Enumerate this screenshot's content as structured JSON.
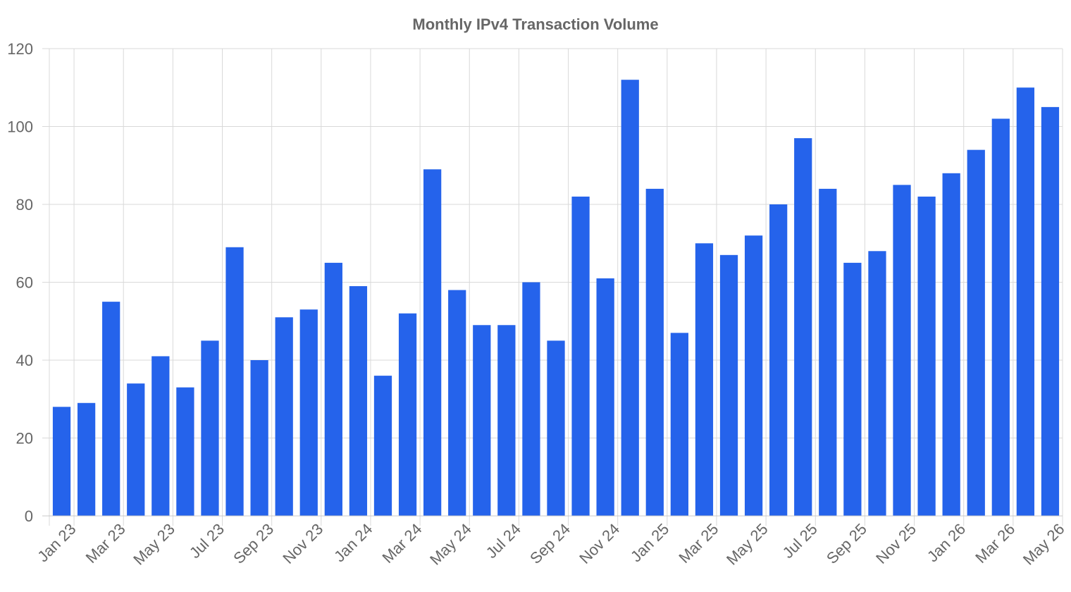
{
  "chart_data": {
    "type": "bar",
    "title": "Monthly IPv4 Transaction Volume",
    "xlabel": "",
    "ylabel": "",
    "ylim": [
      0,
      120
    ],
    "yticks": [
      0,
      20,
      40,
      60,
      80,
      100,
      120
    ],
    "grid": true,
    "bar_color": "#2563EB",
    "categories": [
      "Jan 23",
      "Feb 23",
      "Mar 23",
      "Apr 23",
      "May 23",
      "Jun 23",
      "Jul 23",
      "Aug 23",
      "Sep 23",
      "Oct 23",
      "Nov 23",
      "Dec 23",
      "Jan 24",
      "Feb 24",
      "Mar 24",
      "Apr 24",
      "May 24",
      "Jun 24",
      "Jul 24",
      "Aug 24",
      "Sep 24",
      "Oct 24",
      "Nov 24",
      "Dec 24",
      "Jan 25",
      "Feb 25",
      "Mar 25",
      "Apr 25",
      "May 25",
      "Jun 25",
      "Jul 25",
      "Aug 25",
      "Sep 25",
      "Oct 25",
      "Nov 25",
      "Dec 25",
      "Jan 26",
      "Feb 26",
      "Mar 26",
      "Apr 26",
      "May 26"
    ],
    "tick_labels": [
      "Jan 23",
      "Mar 23",
      "May 23",
      "Jul 23",
      "Sep 23",
      "Nov 23",
      "Jan 24",
      "Mar 24",
      "May 24",
      "Jul 24",
      "Sep 24",
      "Nov 24",
      "Jan 25",
      "Mar 25",
      "May 25",
      "Jul 25",
      "Sep 25",
      "Nov 25",
      "Jan 26",
      "Mar 26",
      "May 26"
    ],
    "values": [
      28,
      29,
      55,
      34,
      41,
      33,
      45,
      69,
      40,
      51,
      53,
      65,
      59,
      36,
      52,
      89,
      58,
      49,
      49,
      60,
      45,
      82,
      61,
      112,
      84,
      47,
      70,
      67,
      72,
      80,
      97,
      84,
      65,
      68,
      85,
      82,
      88,
      94,
      102,
      110,
      105
    ]
  }
}
